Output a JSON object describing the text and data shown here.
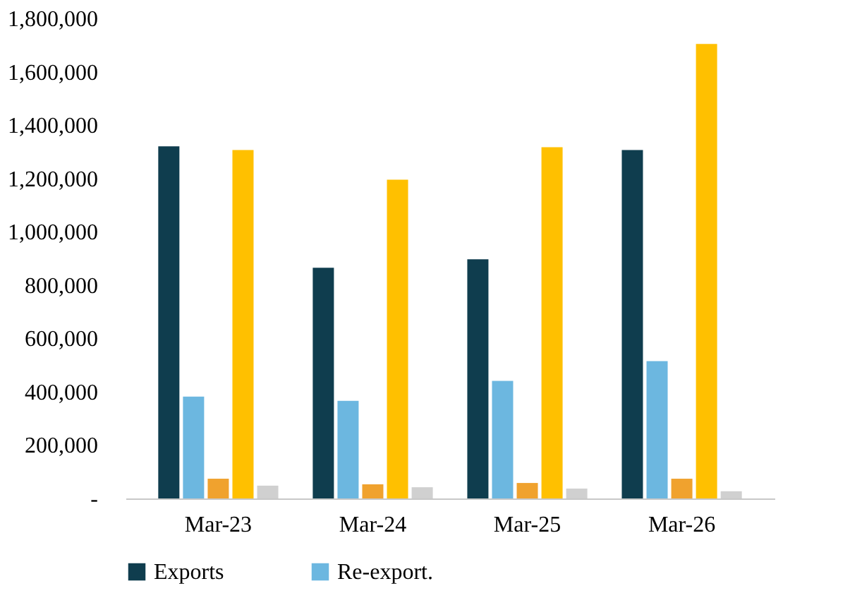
{
  "chart_data": {
    "type": "bar",
    "categories": [
      "Mar-23",
      "Mar-24",
      "Mar-25",
      "Mar-26"
    ],
    "series": [
      {
        "name": "Exports",
        "color": "#0f3d4e",
        "values": [
          1320000,
          865000,
          897000,
          1306000
        ]
      },
      {
        "name": "Re-export.",
        "color": "#6cb7e0",
        "values": [
          382000,
          366000,
          441000,
          515000
        ]
      },
      {
        "color": "#f0a22e",
        "values": [
          74000,
          53000,
          58000,
          74000
        ]
      },
      {
        "color": "#ffc000",
        "values": [
          1306000,
          1195000,
          1317000,
          1704000
        ]
      },
      {
        "color": "#d0d0d0",
        "values": [
          48000,
          42000,
          37000,
          27000
        ]
      }
    ],
    "ylim": [
      0,
      1800000
    ],
    "yticks": [
      {
        "value": 0,
        "label": "-"
      },
      {
        "value": 200000,
        "label": "200,000"
      },
      {
        "value": 400000,
        "label": "400,000"
      },
      {
        "value": 600000,
        "label": "600,000"
      },
      {
        "value": 800000,
        "label": "800,000"
      },
      {
        "value": 1000000,
        "label": "1,000,000"
      },
      {
        "value": 1200000,
        "label": "1,200,000"
      },
      {
        "value": 1400000,
        "label": "1,400,000"
      },
      {
        "value": 1600000,
        "label": "1,600,000"
      },
      {
        "value": 1800000,
        "label": "1,800,000"
      }
    ],
    "grid": false,
    "legend": "bottom"
  }
}
